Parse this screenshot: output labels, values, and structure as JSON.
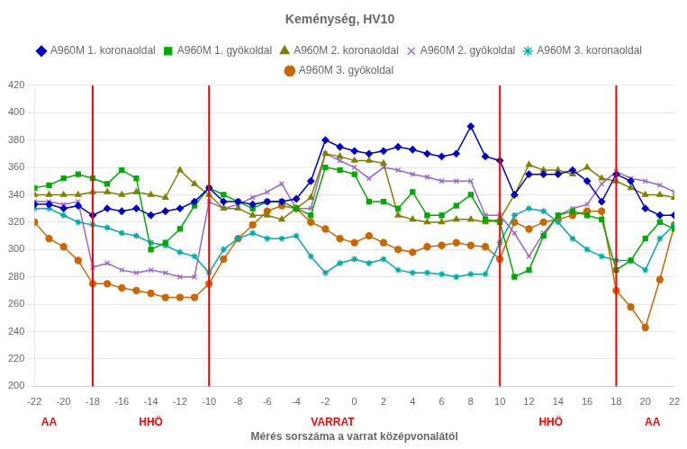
{
  "chart_data": {
    "type": "line",
    "title": "Keménység, HV10",
    "xlabel": "Mérés sorszáma a varrat középvonalától",
    "x": [
      -22,
      -21,
      -20,
      -19,
      -18,
      -17,
      -16,
      -15,
      -14,
      -13,
      -12,
      -11,
      -10,
      -9,
      -8,
      -7,
      -6,
      -5,
      -4,
      -3,
      -2,
      -1,
      0,
      1,
      2,
      3,
      4,
      5,
      6,
      7,
      8,
      9,
      10,
      11,
      12,
      13,
      14,
      15,
      16,
      17,
      18,
      19,
      20,
      21,
      22
    ],
    "series": [
      {
        "name": "A960M 1. koronaoldal",
        "color": "#0000cc",
        "marker": "diamond",
        "values": [
          333,
          333,
          330,
          332,
          325,
          330,
          328,
          330,
          325,
          328,
          330,
          335,
          345,
          335,
          335,
          333,
          335,
          335,
          337,
          350,
          380,
          375,
          372,
          370,
          372,
          375,
          373,
          370,
          368,
          370,
          390,
          368,
          365,
          340,
          355,
          355,
          355,
          358,
          350,
          335,
          355,
          350,
          330,
          325,
          325
        ]
      },
      {
        "name": "A960M 1. gyökoldal",
        "color": "#00aa00",
        "marker": "square",
        "values": [
          345,
          347,
          352,
          355,
          352,
          348,
          358,
          352,
          300,
          305,
          315,
          332,
          345,
          340,
          335,
          330,
          335,
          335,
          330,
          325,
          360,
          358,
          355,
          335,
          335,
          330,
          342,
          325,
          325,
          332,
          340,
          322,
          320,
          280,
          285,
          310,
          325,
          328,
          325,
          322,
          285,
          292,
          308,
          320,
          315
        ]
      },
      {
        "name": "A960M 2. koronaoldal",
        "color": "#808000",
        "marker": "triangle",
        "values": [
          340,
          340,
          340,
          340,
          342,
          342,
          340,
          342,
          340,
          338,
          358,
          348,
          340,
          330,
          330,
          325,
          325,
          322,
          330,
          338,
          370,
          368,
          365,
          365,
          363,
          325,
          322,
          320,
          320,
          322,
          322,
          320,
          322,
          340,
          362,
          358,
          358,
          355,
          360,
          352,
          350,
          345,
          340,
          340,
          338
        ]
      },
      {
        "name": "A960M 2. gyökoldal",
        "color": "#9966cc",
        "marker": "x",
        "values": [
          335,
          335,
          333,
          335,
          287,
          290,
          285,
          283,
          285,
          283,
          280,
          280,
          335,
          330,
          333,
          338,
          342,
          348,
          330,
          330,
          370,
          365,
          360,
          352,
          360,
          358,
          355,
          353,
          350,
          350,
          350,
          325,
          325,
          312,
          295,
          312,
          325,
          330,
          333,
          348,
          357,
          352,
          350,
          347,
          342
        ]
      },
      {
        "name": "A960M 3. koronaoldal",
        "color": "#00aaaa",
        "marker": "star",
        "values": [
          330,
          330,
          325,
          320,
          318,
          316,
          312,
          310,
          305,
          303,
          298,
          295,
          283,
          300,
          308,
          312,
          308,
          308,
          310,
          295,
          283,
          290,
          293,
          290,
          293,
          285,
          283,
          283,
          282,
          280,
          282,
          282,
          305,
          325,
          330,
          328,
          320,
          308,
          300,
          295,
          292,
          292,
          285,
          308,
          318
        ]
      },
      {
        "name": "A960M 3. gyökoldal",
        "color": "#cc6600",
        "marker": "circle",
        "values": [
          320,
          308,
          302,
          292,
          275,
          275,
          272,
          270,
          268,
          265,
          265,
          265,
          275,
          293,
          308,
          318,
          328,
          332,
          330,
          320,
          315,
          308,
          305,
          310,
          305,
          300,
          298,
          302,
          303,
          305,
          303,
          302,
          293,
          320,
          315,
          320,
          322,
          325,
          328,
          328,
          270,
          258,
          243,
          278,
          318
        ]
      }
    ],
    "xlim": [
      -22,
      22
    ],
    "xticks": [
      -22,
      -20,
      -18,
      -16,
      -14,
      -12,
      -10,
      -8,
      -6,
      -4,
      -2,
      0,
      2,
      4,
      6,
      8,
      10,
      12,
      14,
      16,
      18,
      20,
      22
    ],
    "ylim": [
      200,
      420
    ],
    "yticks": [
      200,
      220,
      240,
      260,
      280,
      300,
      320,
      340,
      360,
      380,
      400,
      420
    ],
    "grid": "y",
    "legend": "top",
    "vlines": [
      {
        "x": -18,
        "color": "#ff0000"
      },
      {
        "x": -10,
        "color": "#ff0000"
      },
      {
        "x": 10,
        "color": "#ff0000"
      },
      {
        "x": 18,
        "color": "#ff0000"
      }
    ],
    "annotations": [
      {
        "text": "AA",
        "x": -21.0,
        "color": "#ff0000"
      },
      {
        "text": "HHÖ",
        "x": -14.0,
        "color": "#ff0000"
      },
      {
        "text": "VARRAT",
        "x": -1.5,
        "color": "#ff0000"
      },
      {
        "text": "HHÖ",
        "x": 13.5,
        "color": "#ff0000"
      },
      {
        "text": "AA",
        "x": 20.5,
        "color": "#ff0000"
      }
    ]
  }
}
